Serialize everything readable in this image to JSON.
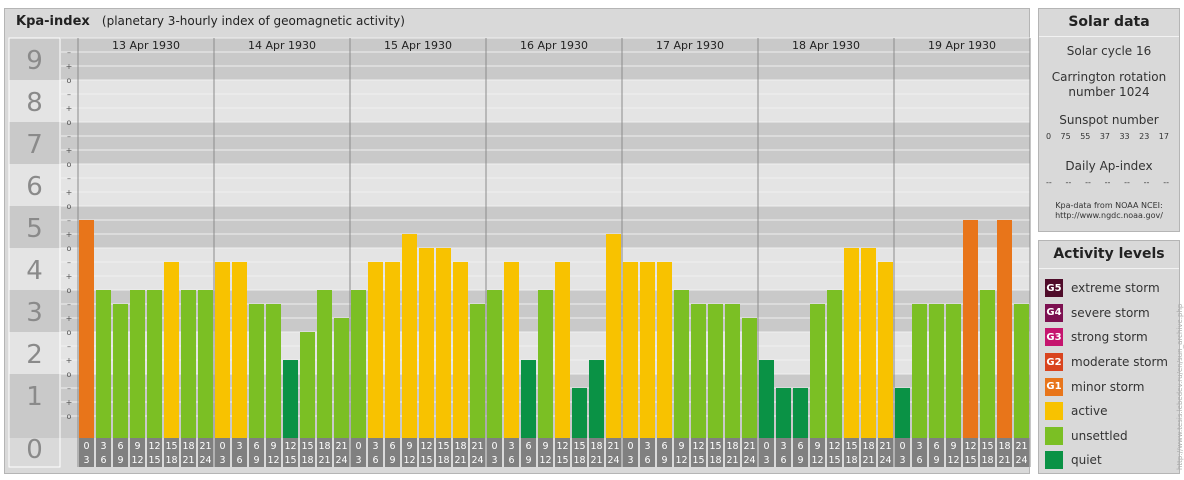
{
  "title": {
    "main": "Kpa-index",
    "subtitle": "(planetary 3-hourly index of geomagnetic activity)"
  },
  "chart_data": {
    "type": "bar",
    "ylim": [
      0,
      9
    ],
    "y_major_ticks": [
      "0",
      "1",
      "2",
      "3",
      "4",
      "5",
      "6",
      "7",
      "8",
      "9"
    ],
    "y_minor_ticks": [
      "o",
      "+",
      "–"
    ],
    "days": [
      "13 Apr 1930",
      "14 Apr 1930",
      "15 Apr 1930",
      "16 Apr 1930",
      "17 Apr 1930",
      "18 Apr 1930",
      "19 Apr 1930"
    ],
    "interval_labels": [
      {
        "start": "0",
        "end": "3"
      },
      {
        "start": "3",
        "end": "6"
      },
      {
        "start": "6",
        "end": "9"
      },
      {
        "start": "9",
        "end": "12"
      },
      {
        "start": "12",
        "end": "15"
      },
      {
        "start": "15",
        "end": "18"
      },
      {
        "start": "18",
        "end": "21"
      },
      {
        "start": "21",
        "end": "24"
      }
    ],
    "values": [
      [
        4.667,
        3.0,
        2.667,
        3.0,
        3.0,
        3.667,
        3.0,
        3.0
      ],
      [
        3.667,
        3.667,
        2.667,
        2.667,
        1.333,
        2.0,
        3.0,
        2.333
      ],
      [
        3.0,
        3.667,
        3.667,
        4.333,
        4.0,
        4.0,
        3.667,
        2.667
      ],
      [
        3.0,
        3.667,
        1.333,
        3.0,
        3.667,
        0.667,
        1.333,
        4.333
      ],
      [
        3.667,
        3.667,
        3.667,
        3.0,
        2.667,
        2.667,
        2.667,
        2.333
      ],
      [
        1.333,
        0.667,
        0.667,
        2.667,
        3.0,
        4.0,
        4.0,
        3.667
      ],
      [
        0.667,
        2.667,
        2.667,
        2.667,
        4.667,
        3.0,
        4.667,
        2.667
      ]
    ],
    "legend_placement": "right",
    "grid": true
  },
  "colors": {
    "quiet": "#0a9245",
    "unsettled": "#7bbf24",
    "active": "#f8c200",
    "minor_storm": "#e8751a",
    "moderate_storm": "#d9441e",
    "strong_storm": "#c5146e",
    "severe_storm": "#7c1050",
    "extreme_storm": "#4f0c2a",
    "band_dark": "#c9c9c9",
    "band_light": "#e4e4e4",
    "axis_box": "#808080"
  },
  "solar": {
    "title": "Solar data",
    "cycle": "Solar cycle 16",
    "carrington_line1": "Carrington rotation",
    "carrington_line2": "number 1024",
    "sunspot_label": "Sunspot number",
    "sunspot_values": [
      "0",
      "75",
      "55",
      "37",
      "33",
      "23",
      "17"
    ],
    "ap_label": "Daily Ap-index",
    "ap_values": [
      "--",
      "--",
      "--",
      "--",
      "--",
      "--",
      "--"
    ],
    "source_line1": "Kpa-data from NOAA NCEI:",
    "source_line2": "http://www.ngdc.noaa.gov/"
  },
  "activity": {
    "title": "Activity levels",
    "levels": [
      {
        "badge": "G5",
        "label": "extreme storm",
        "color": "#4f0c2a"
      },
      {
        "badge": "G4",
        "label": "severe storm",
        "color": "#7c1050"
      },
      {
        "badge": "G3",
        "label": "strong storm",
        "color": "#c5146e"
      },
      {
        "badge": "G2",
        "label": "moderate storm",
        "color": "#d9441e"
      },
      {
        "badge": "G1",
        "label": "minor storm",
        "color": "#e8751a"
      },
      {
        "badge": "",
        "label": "active",
        "color": "#f8c200"
      },
      {
        "badge": "",
        "label": "unsettled",
        "color": "#7bbf24"
      },
      {
        "badge": "",
        "label": "quiet",
        "color": "#0a9245"
      }
    ]
  },
  "watermark": "http://www.tesis.lebedev.ru/en/sun_archive.php"
}
